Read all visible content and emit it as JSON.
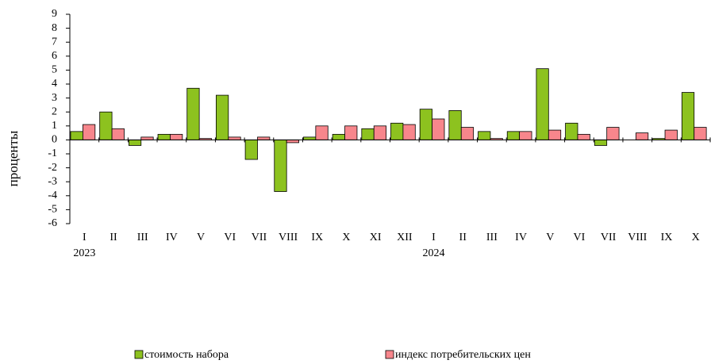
{
  "chart_data": {
    "type": "bar",
    "y_label": "проценты",
    "categories": [
      "I",
      "II",
      "III",
      "IV",
      "V",
      "VI",
      "VII",
      "VIII",
      "IX",
      "X",
      "XI",
      "XII",
      "I",
      "II",
      "III",
      "IV",
      "V",
      "VI",
      "VII",
      "VIII",
      "IX",
      "X"
    ],
    "x_years": [
      "2023",
      null,
      null,
      null,
      null,
      null,
      null,
      null,
      null,
      null,
      null,
      null,
      "2024",
      null,
      null,
      null,
      null,
      null,
      null,
      null,
      null,
      null
    ],
    "series": [
      {
        "name": "стоимость набора",
        "color": "#8dc21f",
        "values": [
          0.6,
          2.0,
          -0.4,
          0.4,
          3.7,
          3.2,
          -1.4,
          -3.7,
          0.2,
          0.4,
          0.8,
          1.2,
          2.2,
          2.1,
          0.6,
          0.6,
          5.1,
          1.2,
          -0.4,
          0.0,
          0.1,
          3.4
        ]
      },
      {
        "name": "индекс потребительских цен",
        "color": "#f7868c",
        "values": [
          1.1,
          0.8,
          0.2,
          0.4,
          0.1,
          0.2,
          0.2,
          -0.2,
          1.0,
          1.0,
          1.0,
          1.1,
          1.5,
          0.9,
          0.1,
          0.6,
          0.7,
          0.4,
          0.9,
          0.5,
          0.7,
          0.9
        ]
      }
    ],
    "ylim": [
      -6,
      9
    ],
    "yticks": [
      -6,
      -5,
      -4,
      -3,
      -2,
      -1,
      0,
      1,
      2,
      3,
      4,
      5,
      6,
      7,
      8,
      9
    ],
    "grid": false
  }
}
